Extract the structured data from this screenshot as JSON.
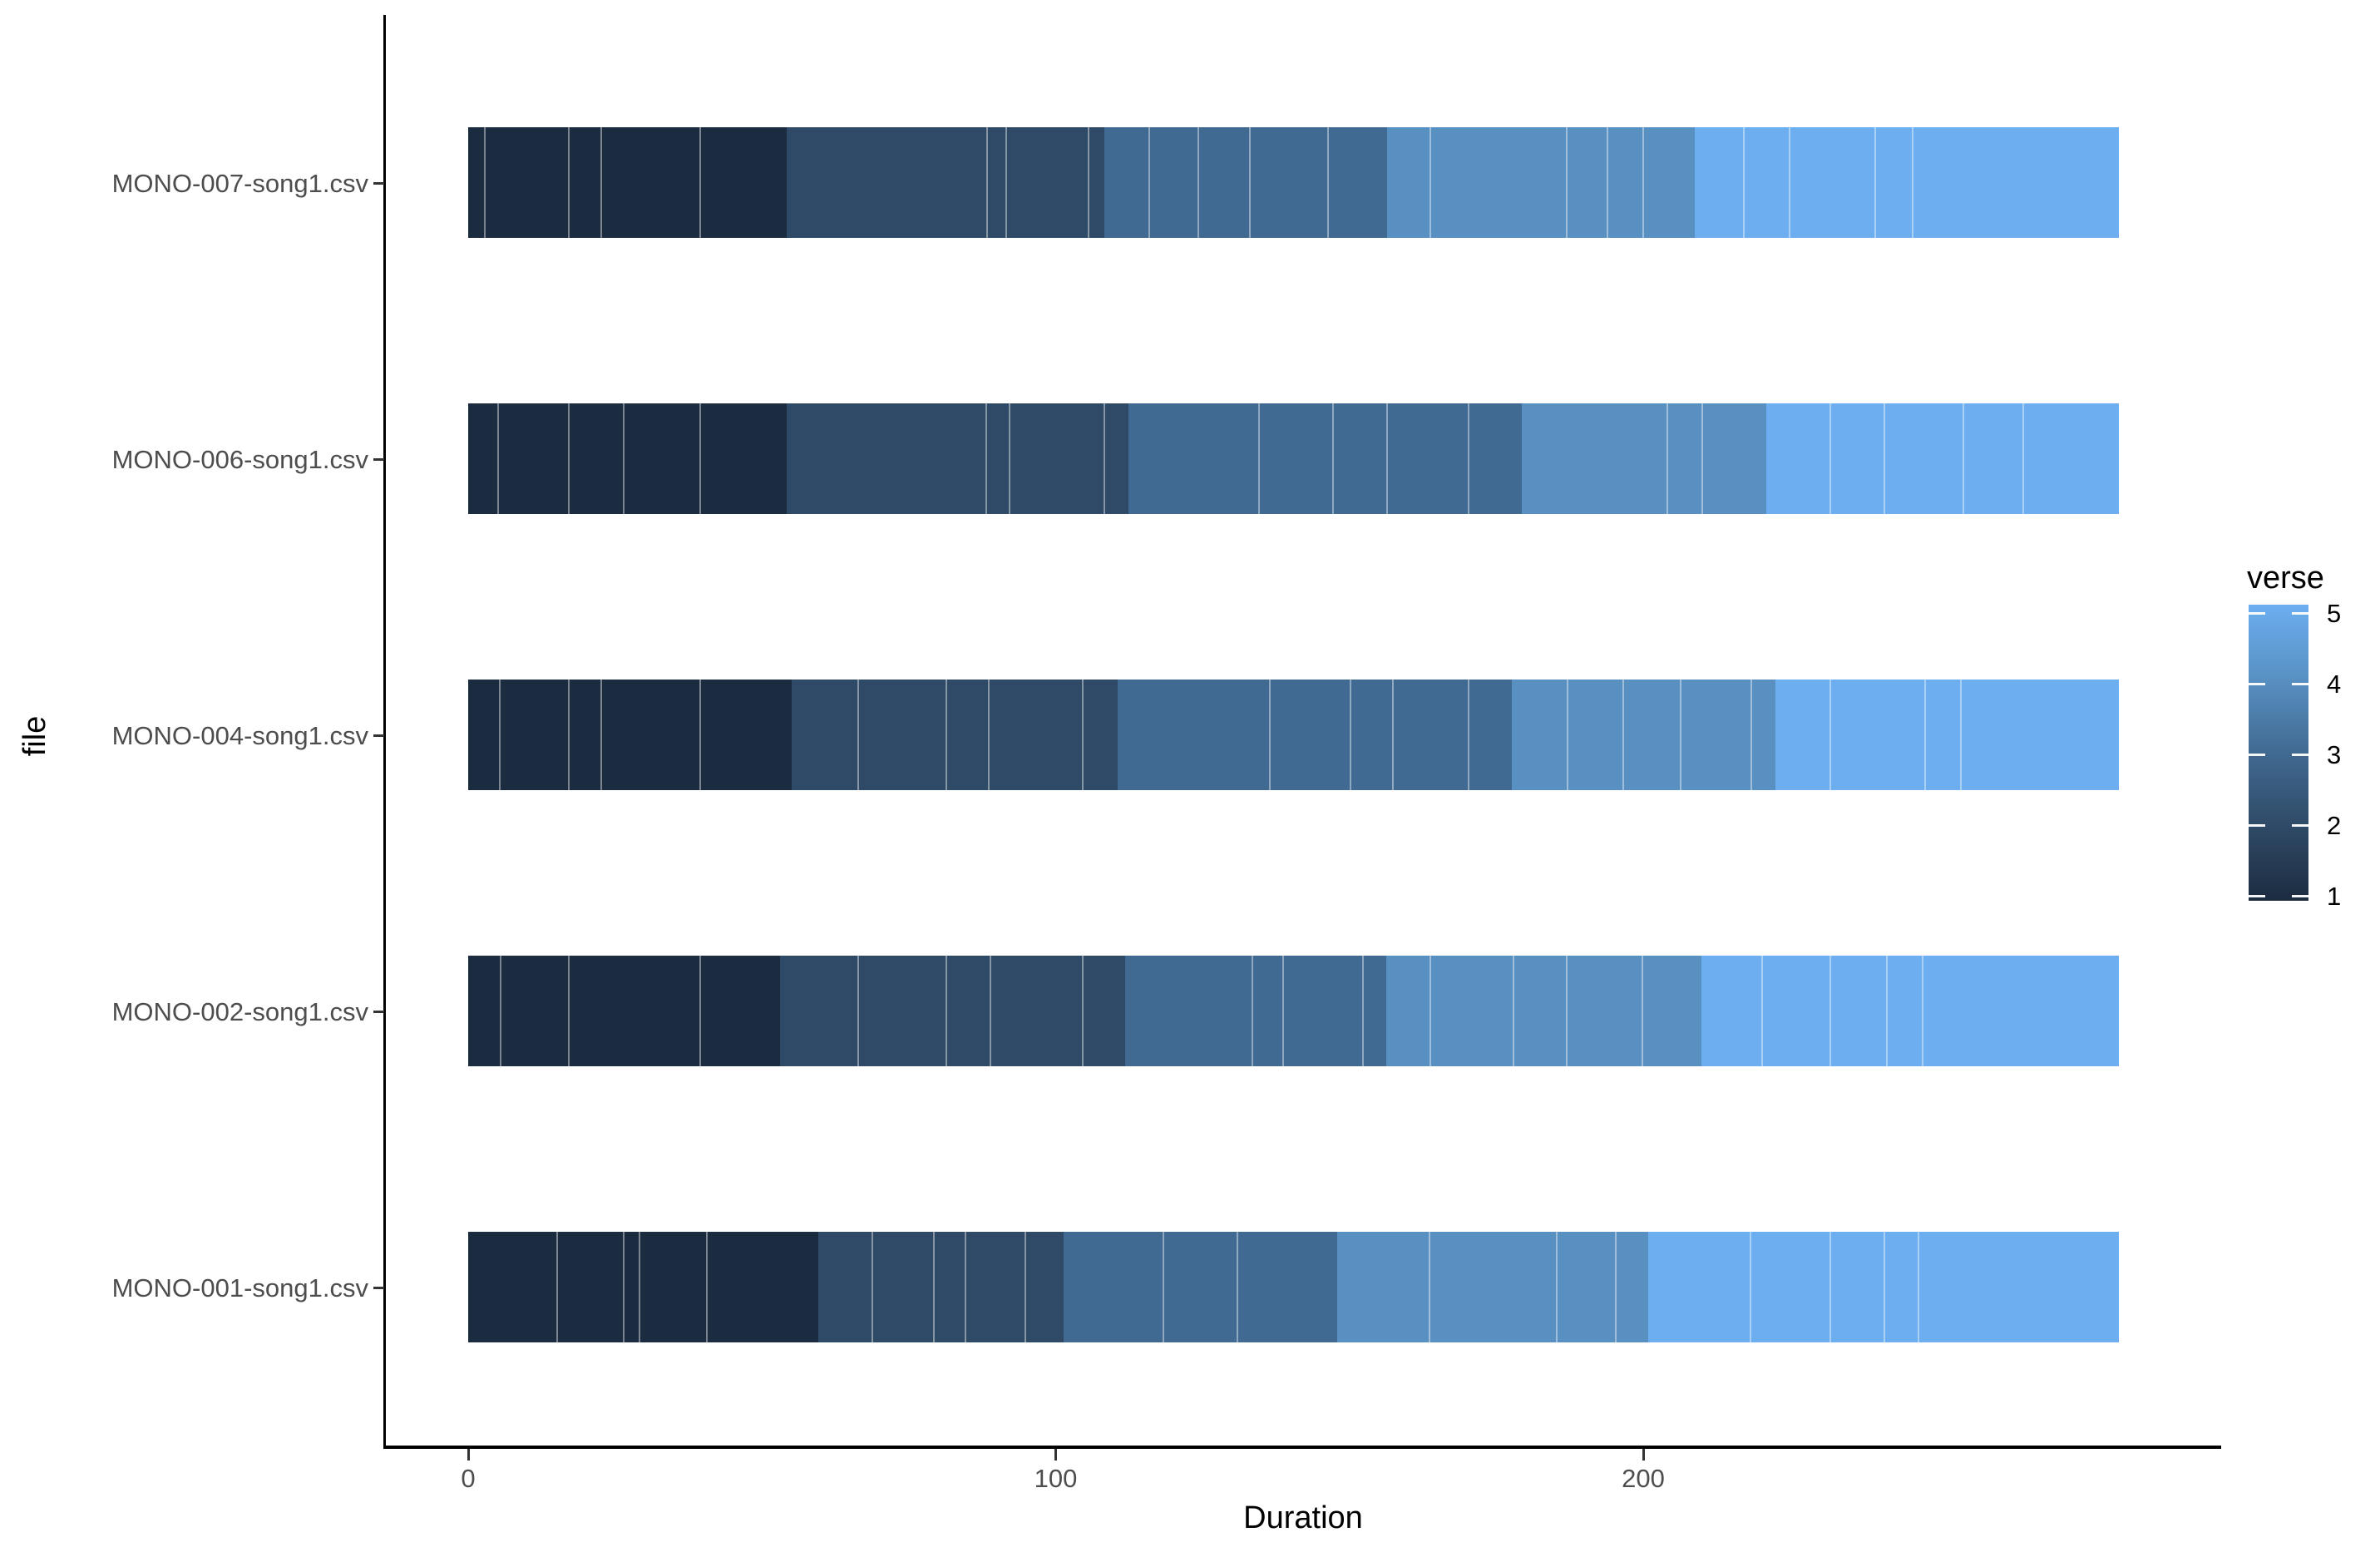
{
  "chart_data": {
    "type": "bar",
    "orientation": "horizontal",
    "stacked": true,
    "title": "",
    "xlabel": "Duration",
    "ylabel": "file",
    "x_ticks": [
      0,
      100,
      200
    ],
    "x_range": [
      0,
      281
    ],
    "grid": false,
    "legend": {
      "title": "verse",
      "style": "continuous-gradient-colorbar",
      "position": "right",
      "ticks": [
        5,
        4,
        3,
        2,
        1
      ]
    },
    "verse_colors": {
      "1": "#1C2C40",
      "2": "#2F4A66",
      "3": "#416A92",
      "4": "#5890C2",
      "5": "#6CAEF0"
    },
    "categories_top_to_bottom": [
      "MONO-007-song1.csv",
      "MONO-006-song1.csv",
      "MONO-004-song1.csv",
      "MONO-002-song1.csv",
      "MONO-001-song1.csv"
    ],
    "bars": [
      {
        "file": "MONO-007-song1.csv",
        "total_duration": 281,
        "verse_blocks": [
          {
            "verse": 1,
            "start": 0,
            "end": 54.2
          },
          {
            "verse": 2,
            "start": 54.2,
            "end": 108.3
          },
          {
            "verse": 3,
            "start": 108.3,
            "end": 156.4
          },
          {
            "verse": 4,
            "start": 156.4,
            "end": 208.8
          },
          {
            "verse": 5,
            "start": 208.8,
            "end": 281
          }
        ],
        "segment_breaks": [
          2.8,
          17.1,
          22.6,
          39.5,
          88.3,
          91.6,
          105.6,
          115.9,
          124.3,
          133.0,
          146.3,
          163.8,
          187.0,
          193.9,
          200.0,
          217.1,
          224.9,
          239.5,
          245.9
        ]
      },
      {
        "file": "MONO-006-song1.csv",
        "total_duration": 281,
        "verse_blocks": [
          {
            "verse": 1,
            "start": 0,
            "end": 54.2
          },
          {
            "verse": 2,
            "start": 54.2,
            "end": 112.4
          },
          {
            "verse": 3,
            "start": 112.4,
            "end": 179.3
          },
          {
            "verse": 4,
            "start": 179.3,
            "end": 221.0
          },
          {
            "verse": 5,
            "start": 221.0,
            "end": 281
          }
        ],
        "segment_breaks": [
          5.1,
          17.1,
          26.5,
          39.5,
          88.2,
          92.1,
          108.3,
          134.6,
          147.2,
          156.4,
          170.3,
          204.1,
          210.1,
          231.8,
          241.1,
          254.5,
          264.7
        ]
      },
      {
        "file": "MONO-004-song1.csv",
        "total_duration": 281,
        "verse_blocks": [
          {
            "verse": 1,
            "start": 0,
            "end": 55.1
          },
          {
            "verse": 2,
            "start": 55.1,
            "end": 110.5
          },
          {
            "verse": 3,
            "start": 110.5,
            "end": 177.6
          },
          {
            "verse": 4,
            "start": 177.6,
            "end": 222.5
          },
          {
            "verse": 5,
            "start": 222.5,
            "end": 281
          }
        ],
        "segment_breaks": [
          5.4,
          17.1,
          22.6,
          39.5,
          66.4,
          81.4,
          88.6,
          104.6,
          136.4,
          150.2,
          157.4,
          170.3,
          187.1,
          196.6,
          206.4,
          218.4,
          231.8,
          248.0,
          254.1
        ]
      },
      {
        "file": "MONO-002-song1.csv",
        "total_duration": 281,
        "verse_blocks": [
          {
            "verse": 1,
            "start": 0,
            "end": 53.1
          },
          {
            "verse": 2,
            "start": 53.1,
            "end": 111.8
          },
          {
            "verse": 3,
            "start": 111.8,
            "end": 156.2
          },
          {
            "verse": 4,
            "start": 156.2,
            "end": 209.9
          },
          {
            "verse": 5,
            "start": 209.9,
            "end": 281
          }
        ],
        "segment_breaks": [
          5.5,
          17.1,
          39.5,
          66.4,
          81.4,
          88.9,
          104.6,
          133.5,
          138.7,
          152.3,
          163.8,
          177.9,
          187.0,
          199.9,
          220.2,
          231.8,
          241.5,
          247.6
        ]
      },
      {
        "file": "MONO-001-song1.csv",
        "total_duration": 281,
        "verse_blocks": [
          {
            "verse": 1,
            "start": 0,
            "end": 59.6
          },
          {
            "verse": 2,
            "start": 59.6,
            "end": 101.3
          },
          {
            "verse": 3,
            "start": 101.3,
            "end": 147.9
          },
          {
            "verse": 4,
            "start": 147.9,
            "end": 200.8
          },
          {
            "verse": 5,
            "start": 200.8,
            "end": 281
          }
        ],
        "segment_breaks": [
          15.1,
          26.5,
          29.2,
          40.6,
          68.8,
          79.3,
          84.6,
          94.8,
          118.3,
          130.9,
          163.6,
          185.3,
          195.3,
          218.3,
          231.8,
          241.1,
          246.9
        ]
      }
    ]
  }
}
